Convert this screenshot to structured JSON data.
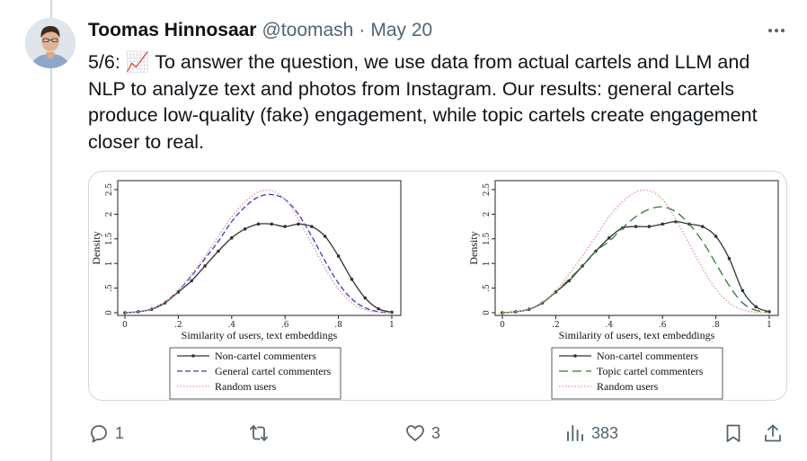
{
  "tweet": {
    "author_name": "Toomas Hinnosaar",
    "author_handle": "@toomash",
    "separator": "·",
    "date": "May 20",
    "text": "5/6: 📈 To answer the question, we use data from actual cartels and LLM and NLP to analyze text and photos from Instagram. Our results: general cartels produce low-quality (fake) engagement, while topic cartels create engagement closer to real.",
    "more_icon": "more-icon"
  },
  "actions": {
    "reply_count": "1",
    "retweet_count": "",
    "like_count": "3",
    "views_count": "383",
    "icons": [
      "reply-icon",
      "retweet-icon",
      "like-icon",
      "views-icon",
      "bookmark-icon",
      "share-icon"
    ]
  },
  "chart_data": [
    {
      "type": "line",
      "title": "",
      "xlabel": "Similarity of users, text embeddings",
      "ylabel": "Density",
      "xlim": [
        0,
        1
      ],
      "ylim": [
        0,
        2.5
      ],
      "xticks": [
        "0",
        ".2",
        ".4",
        ".6",
        ".8",
        "1"
      ],
      "yticks": [
        "0",
        ".5",
        "1",
        "1.5",
        "2",
        "2.5"
      ],
      "legend_position": "bottom",
      "series": [
        {
          "name": "Non-cartel commenters",
          "style": "solid-markers",
          "color": "#333333",
          "x": [
            0.0,
            0.05,
            0.1,
            0.15,
            0.2,
            0.25,
            0.3,
            0.35,
            0.4,
            0.45,
            0.5,
            0.55,
            0.6,
            0.65,
            0.7,
            0.75,
            0.8,
            0.85,
            0.9,
            0.95,
            1.0
          ],
          "y": [
            0.0,
            0.02,
            0.07,
            0.2,
            0.42,
            0.65,
            0.95,
            1.25,
            1.52,
            1.7,
            1.8,
            1.8,
            1.75,
            1.8,
            1.75,
            1.55,
            1.15,
            0.68,
            0.3,
            0.08,
            0.01
          ]
        },
        {
          "name": "General cartel commenters",
          "style": "dashed",
          "color": "#3a3ab8",
          "x": [
            0.0,
            0.05,
            0.1,
            0.15,
            0.2,
            0.25,
            0.3,
            0.35,
            0.4,
            0.45,
            0.5,
            0.55,
            0.6,
            0.65,
            0.7,
            0.75,
            0.8,
            0.85,
            0.9,
            0.95,
            1.0
          ],
          "y": [
            0.0,
            0.02,
            0.08,
            0.22,
            0.45,
            0.75,
            1.1,
            1.45,
            1.85,
            2.15,
            2.35,
            2.4,
            2.3,
            2.0,
            1.55,
            1.05,
            0.6,
            0.28,
            0.1,
            0.02,
            0.0
          ]
        },
        {
          "name": "Random users",
          "style": "dotted",
          "color": "#e6a3a8",
          "x": [
            0.0,
            0.05,
            0.1,
            0.15,
            0.2,
            0.25,
            0.3,
            0.35,
            0.4,
            0.45,
            0.5,
            0.55,
            0.6,
            0.65,
            0.7,
            0.75,
            0.8,
            0.85,
            0.9,
            0.95,
            1.0
          ],
          "y": [
            0.0,
            0.02,
            0.08,
            0.22,
            0.45,
            0.78,
            1.15,
            1.55,
            1.95,
            2.25,
            2.45,
            2.48,
            2.3,
            1.9,
            1.4,
            0.9,
            0.48,
            0.2,
            0.06,
            0.01,
            0.0
          ]
        }
      ]
    },
    {
      "type": "line",
      "title": "",
      "xlabel": "Similarity of users, text embeddings",
      "ylabel": "Density",
      "xlim": [
        0,
        1
      ],
      "ylim": [
        0,
        2.5
      ],
      "xticks": [
        "0",
        ".2",
        ".4",
        ".6",
        ".8",
        "1"
      ],
      "yticks": [
        "0",
        ".5",
        "1",
        "1.5",
        "2",
        "2.5"
      ],
      "legend_position": "bottom",
      "series": [
        {
          "name": "Non-cartel commenters",
          "style": "solid-markers",
          "color": "#333333",
          "x": [
            0.0,
            0.05,
            0.1,
            0.15,
            0.2,
            0.25,
            0.3,
            0.35,
            0.4,
            0.45,
            0.5,
            0.55,
            0.6,
            0.65,
            0.7,
            0.75,
            0.8,
            0.85,
            0.9,
            0.95,
            1.0
          ],
          "y": [
            0.0,
            0.02,
            0.07,
            0.2,
            0.42,
            0.65,
            0.95,
            1.25,
            1.52,
            1.72,
            1.75,
            1.75,
            1.8,
            1.85,
            1.8,
            1.75,
            1.55,
            1.1,
            0.45,
            0.12,
            0.02
          ]
        },
        {
          "name": "Topic cartel commenters",
          "style": "long-dash",
          "color": "#2e7d32",
          "x": [
            0.0,
            0.05,
            0.1,
            0.15,
            0.2,
            0.25,
            0.3,
            0.35,
            0.4,
            0.45,
            0.5,
            0.55,
            0.6,
            0.65,
            0.7,
            0.75,
            0.8,
            0.85,
            0.9,
            0.95,
            1.0
          ],
          "y": [
            0.0,
            0.02,
            0.07,
            0.2,
            0.42,
            0.68,
            0.95,
            1.25,
            1.45,
            1.72,
            1.95,
            2.1,
            2.15,
            2.05,
            1.8,
            1.45,
            1.0,
            0.55,
            0.2,
            0.05,
            0.01
          ]
        },
        {
          "name": "Random users",
          "style": "dotted",
          "color": "#e6a3a8",
          "x": [
            0.0,
            0.05,
            0.1,
            0.15,
            0.2,
            0.25,
            0.3,
            0.35,
            0.4,
            0.45,
            0.5,
            0.55,
            0.6,
            0.65,
            0.7,
            0.75,
            0.8,
            0.85,
            0.9,
            0.95,
            1.0
          ],
          "y": [
            0.0,
            0.02,
            0.08,
            0.22,
            0.45,
            0.78,
            1.15,
            1.55,
            1.95,
            2.25,
            2.45,
            2.48,
            2.3,
            1.9,
            1.4,
            0.9,
            0.48,
            0.2,
            0.06,
            0.01,
            0.0
          ]
        }
      ]
    }
  ]
}
